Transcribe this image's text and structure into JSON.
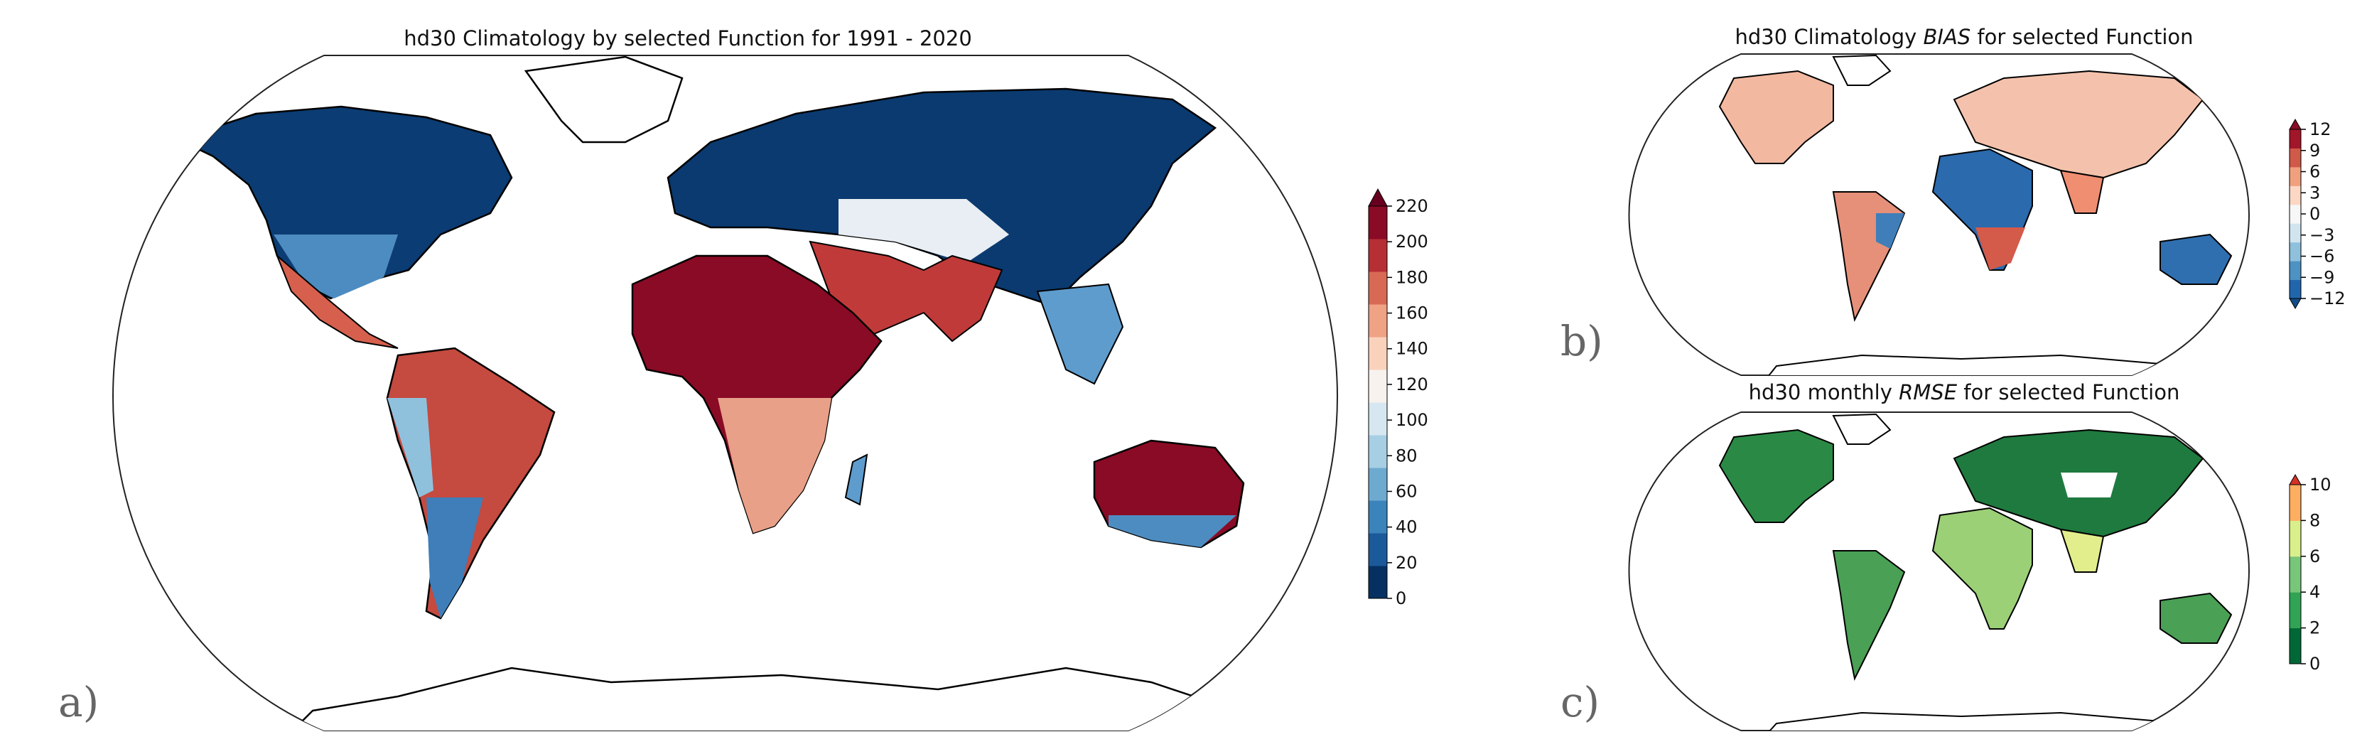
{
  "panels": [
    {
      "id": "a",
      "panel_label": "a)",
      "title_parts": [
        {
          "text": "hd30 Climatology by selected Function for 1991 - 2020",
          "italic": false
        }
      ],
      "colorbar": {
        "ticks": [
          "0",
          "20",
          "40",
          "60",
          "80",
          "100",
          "120",
          "140",
          "160",
          "180",
          "200",
          "220"
        ],
        "colors": [
          "#053061",
          "#1b5a9a",
          "#3a84bb",
          "#6eaad0",
          "#a7cfe4",
          "#d6e7f1",
          "#f7f2ee",
          "#fad2bb",
          "#f0a284",
          "#d86a55",
          "#b62f35",
          "#8a0b25"
        ],
        "extend": "max",
        "extend_color": "#67001f"
      }
    },
    {
      "id": "b",
      "panel_label": "b)",
      "title_parts": [
        {
          "text": "hd30 Climatology ",
          "italic": false
        },
        {
          "text": "BIAS",
          "italic": true
        },
        {
          "text": " for selected Function",
          "italic": false
        }
      ],
      "colorbar": {
        "ticks": [
          "−12",
          "−9",
          "−6",
          "−3",
          "0",
          "3",
          "6",
          "9",
          "12"
        ],
        "colors": [
          "#2166ac",
          "#4e92c4",
          "#8fc1dd",
          "#d1e5f0",
          "#f7f7f7",
          "#fbd7c4",
          "#f1a07f",
          "#d05a4a",
          "#a2162a"
        ],
        "extend": "both",
        "extend_low": "#134b87",
        "extend_high": "#8a0b25"
      }
    },
    {
      "id": "c",
      "panel_label": "c)",
      "title_parts": [
        {
          "text": "hd30 monthly ",
          "italic": false
        },
        {
          "text": "RMSE",
          "italic": true
        },
        {
          "text": " for selected Function",
          "italic": false
        }
      ],
      "colorbar": {
        "ticks": [
          "0",
          "2",
          "4",
          "6",
          "8",
          "10"
        ],
        "colors": [
          "#006837",
          "#31a354",
          "#78c679",
          "#d9ef8b",
          "#fdae61"
        ],
        "extend": "max",
        "extend_color": "#d73027"
      }
    }
  ]
}
